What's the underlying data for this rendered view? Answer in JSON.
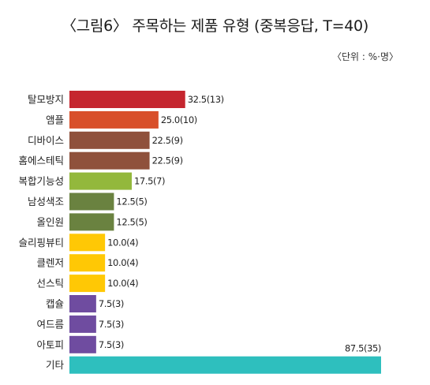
{
  "chart_data": {
    "type": "bar",
    "orientation": "horizontal",
    "title": "〈그림6〉 주목하는 제품 유형 (중복응답, T=40)",
    "unit_note": "〈단위 : %·명〉",
    "xlabel": "",
    "ylabel": "",
    "xlim": [
      0,
      90
    ],
    "grid": false,
    "categories": [
      "탈모방지",
      "앰플",
      "디바이스",
      "홈에스테틱",
      "복합기능성",
      "남성색조",
      "올인원",
      "슬리핑뷰티",
      "클렌저",
      "선스틱",
      "캡슐",
      "여드름",
      "아토피",
      "기타"
    ],
    "values": [
      32.5,
      25.0,
      22.5,
      22.5,
      17.5,
      12.5,
      12.5,
      10.0,
      10.0,
      10.0,
      7.5,
      7.5,
      7.5,
      87.5
    ],
    "counts": [
      13,
      10,
      9,
      9,
      7,
      5,
      5,
      4,
      4,
      4,
      3,
      3,
      3,
      35
    ],
    "data_labels": [
      "32.5(13)",
      "25.0(10)",
      "22.5(9)",
      "22.5(9)",
      "17.5(7)",
      "12.5(5)",
      "12.5(5)",
      "10.0(4)",
      "10.0(4)",
      "10.0(4)",
      "7.5(3)",
      "7.5(3)",
      "7.5(3)",
      "87.5(35)"
    ],
    "colors": [
      "#c5262f",
      "#d84f2a",
      "#8f513c",
      "#8f513c",
      "#93b83c",
      "#6a8240",
      "#6a8240",
      "#ffc805",
      "#ffc805",
      "#ffc805",
      "#6f4ca0",
      "#6f4ca0",
      "#6f4ca0",
      "#2ebfbe"
    ]
  }
}
